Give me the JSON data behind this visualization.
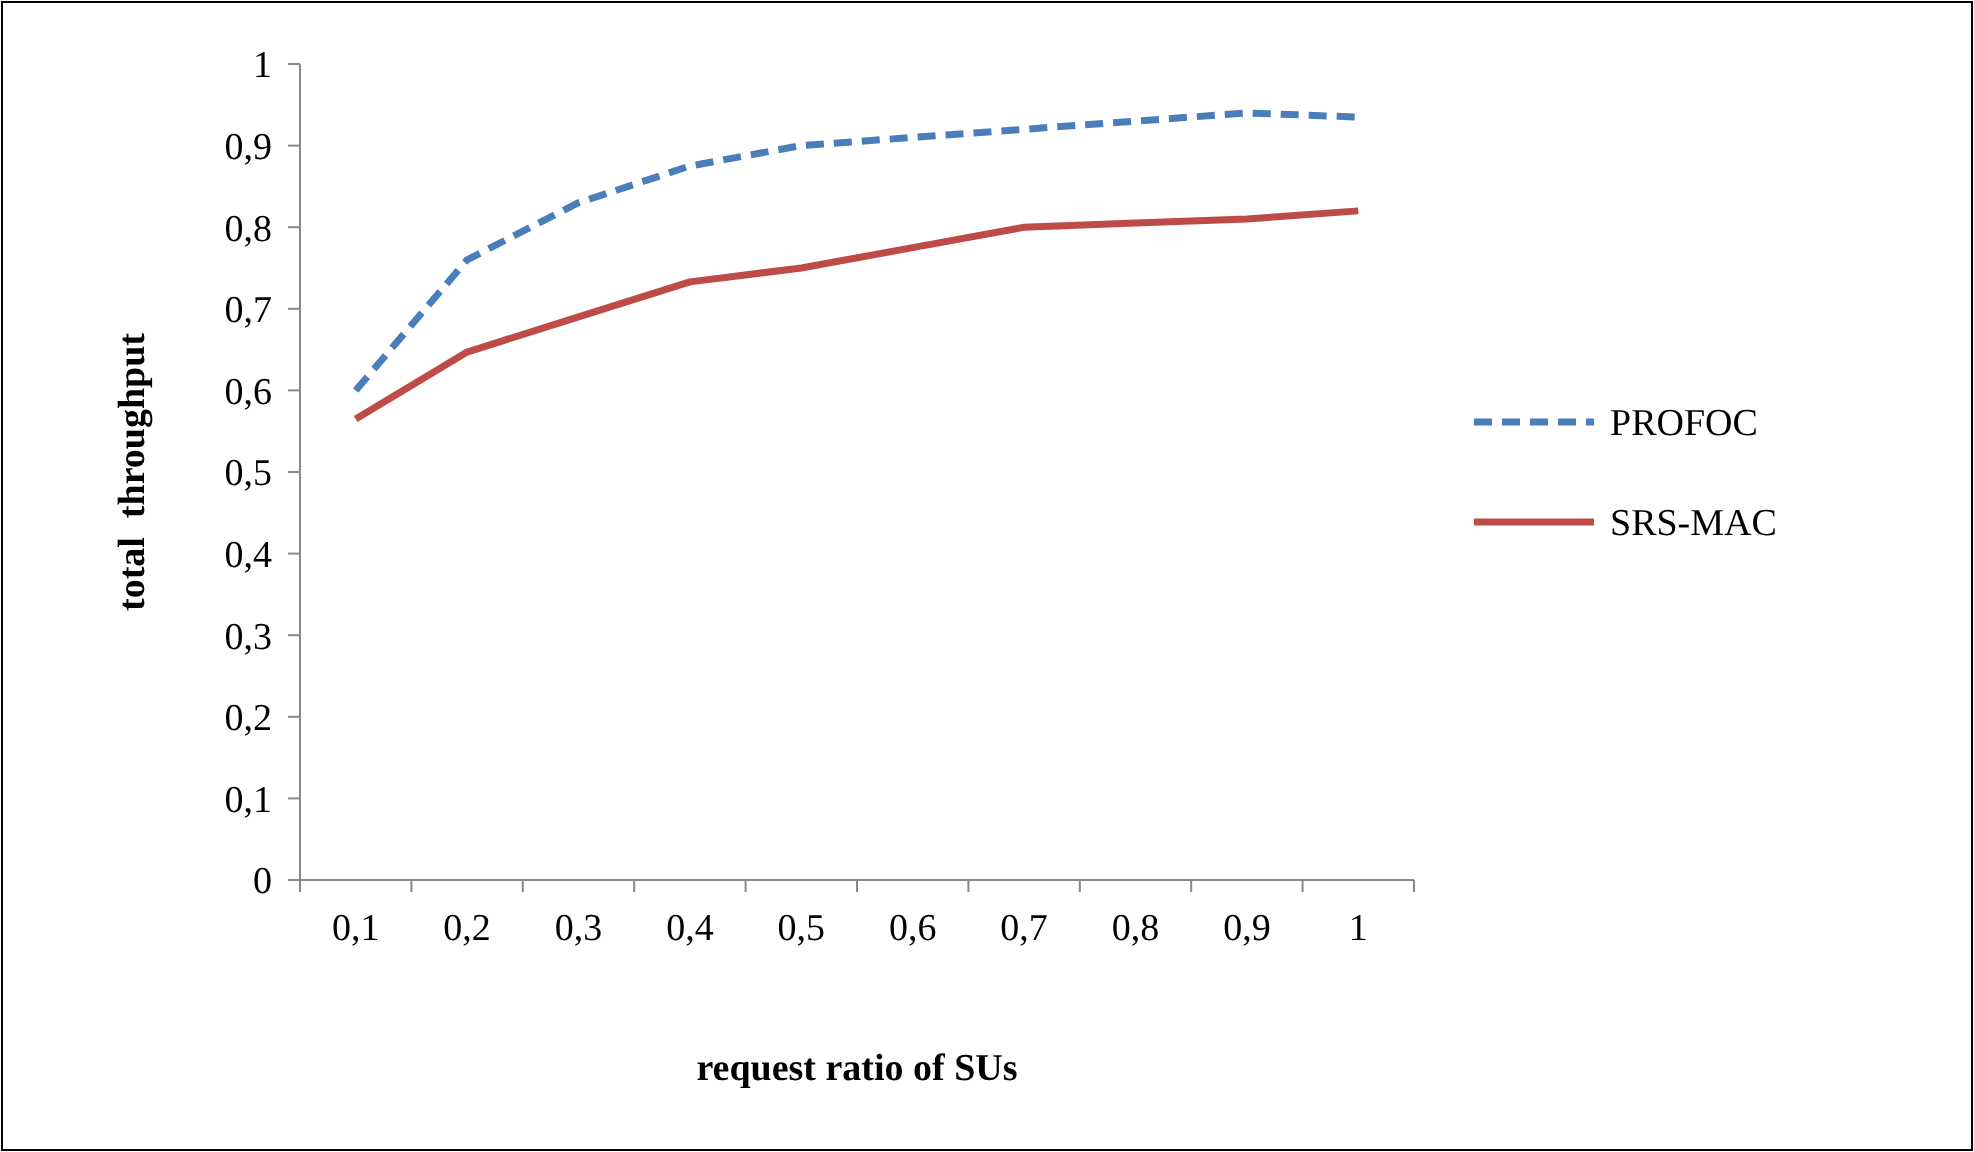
{
  "chart_data": {
    "type": "line",
    "xlabel": "request ratio of SUs",
    "ylabel": "total  throughput",
    "categories": [
      "0,1",
      "0,2",
      "0,3",
      "0,4",
      "0,5",
      "0,6",
      "0,7",
      "0,8",
      "0,9",
      "1"
    ],
    "series": [
      {
        "name": "PROFOC",
        "color": "#4a7ebb",
        "line_style": "dashed",
        "values": [
          0.6,
          0.76,
          0.83,
          0.875,
          0.9,
          0.91,
          0.92,
          0.93,
          0.94,
          0.935
        ]
      },
      {
        "name": "SRS-MAC",
        "color": "#be4b48",
        "line_style": "solid",
        "values": [
          0.565,
          0.647,
          0.69,
          0.733,
          0.75,
          0.775,
          0.8,
          0.805,
          0.81,
          0.82
        ]
      }
    ],
    "ylim": [
      0,
      1
    ],
    "yticks": [
      0,
      {
        "value": 0.1,
        "label": "0,1"
      },
      {
        "value": 0.2,
        "label": "0,2"
      },
      {
        "value": 0.3,
        "label": "0,3"
      },
      {
        "value": 0.4,
        "label": "0,4"
      },
      {
        "value": 0.5,
        "label": "0,5"
      },
      {
        "value": 0.6,
        "label": "0,6"
      },
      {
        "value": 0.7,
        "label": "0,7"
      },
      {
        "value": 0.8,
        "label": "0,8"
      },
      {
        "value": 0.9,
        "label": "0,9"
      },
      1
    ],
    "grid": false,
    "legend": "right",
    "marker": "none"
  }
}
